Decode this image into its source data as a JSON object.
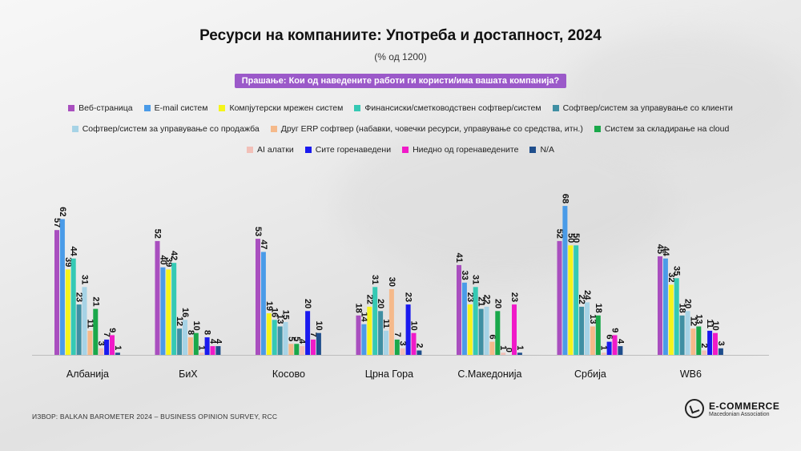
{
  "header": {
    "title": "Ресурси на компаниите: Употреба и достапност, 2024",
    "subtitle": "(% од 1200)",
    "question": "Прашање: Кои од наведените работи ги користи/има вашата компанија?"
  },
  "chart_data": {
    "type": "bar",
    "title": "Ресурси на компаниите: Употреба и достапност, 2024",
    "categories": [
      "Албанија",
      "БиХ",
      "Косово",
      "Црна Гора",
      "С.Македонија",
      "Србија",
      "WB6"
    ],
    "series": [
      {
        "name": "Веб-страница",
        "color": "#a94fbf",
        "values": [
          57,
          52,
          53,
          18,
          41,
          52,
          45
        ]
      },
      {
        "name": "E-mail систем",
        "color": "#4a9be8",
        "values": [
          62,
          40,
          47,
          14,
          33,
          68,
          44
        ]
      },
      {
        "name": "Компјутерски мрежен систем",
        "color": "#f5f51a",
        "values": [
          39,
          39,
          19,
          22,
          23,
          50,
          32
        ]
      },
      {
        "name": "Финансиски/сметководствен софтвер/систем",
        "color": "#35c9b4",
        "values": [
          44,
          42,
          16,
          31,
          31,
          50,
          35
        ]
      },
      {
        "name": "Софтвер/систем за управување со клиенти",
        "color": "#3f8fa3",
        "values": [
          23,
          12,
          13,
          20,
          21,
          22,
          18
        ]
      },
      {
        "name": "Софтвер/систем за управување со продажба",
        "color": "#a6d3e6",
        "values": [
          31,
          16,
          15,
          11,
          22,
          24,
          20
        ]
      },
      {
        "name": "Друг ERP софтвер (набавки, човечки ресурси, управување со средства, итн.)",
        "color": "#f5b98a",
        "values": [
          11,
          8,
          5,
          30,
          6,
          13,
          12
        ]
      },
      {
        "name": "Систем за складирање на cloud",
        "color": "#1aa84a",
        "values": [
          21,
          10,
          5,
          7,
          20,
          18,
          13
        ]
      },
      {
        "name": "AI алатки",
        "color": "#f2c0b8",
        "values": [
          3,
          1,
          4,
          3,
          1,
          1,
          2
        ]
      },
      {
        "name": "Сите горенаведени",
        "color": "#1a1aef",
        "values": [
          7,
          8,
          20,
          23,
          0,
          6,
          11
        ]
      },
      {
        "name": "Ниедно од горенаведените",
        "color": "#f01ac8",
        "values": [
          9,
          4,
          7,
          10,
          23,
          9,
          10
        ]
      },
      {
        "name": "N/A",
        "color": "#1f4e8c",
        "values": [
          1,
          4,
          10,
          2,
          1,
          4,
          3
        ]
      }
    ],
    "ylim": [
      0,
      75
    ],
    "grid": false,
    "legend": "top-center"
  },
  "footer": {
    "source": "ИЗВОР: BALKAN BAROMETER 2024 – BUSINESS OPINION SURVEY, RCC",
    "logo_title": "E-COMMERCE",
    "logo_subtitle": "Macedonian Association"
  },
  "icons": {
    "logo": "ecommerce-logo-icon"
  }
}
